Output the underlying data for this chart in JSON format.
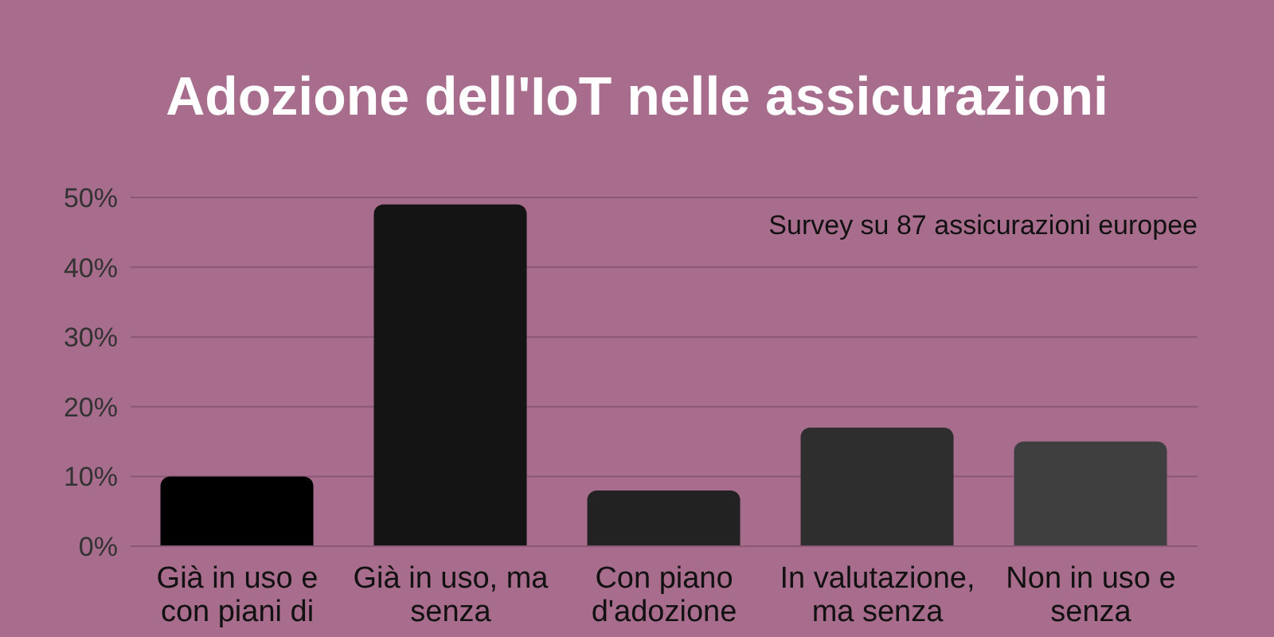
{
  "chart_data": {
    "type": "bar",
    "title": "Adozione dell'IoT nelle assicurazioni",
    "annotations": [
      "Survey su 87 assicurazioni europee"
    ],
    "categories": [
      "Già in uso e con piani di",
      "Già in uso, ma senza",
      "Con piano d'adozione",
      "In valutazione, ma senza",
      "Non in uso e senza"
    ],
    "values": [
      10,
      49,
      8,
      17,
      15
    ],
    "colors": [
      "#000000",
      "#141414",
      "#222222",
      "#2e2e2e",
      "#3f3f3f"
    ],
    "ylim": [
      0,
      50
    ],
    "yticks": [
      {
        "value": 0,
        "label": "0%"
      },
      {
        "value": 10,
        "label": "10%"
      },
      {
        "value": 20,
        "label": "20%"
      },
      {
        "value": 30,
        "label": "30%"
      },
      {
        "value": 40,
        "label": "40%"
      },
      {
        "value": 50,
        "label": "50%"
      }
    ],
    "grid": "y"
  }
}
